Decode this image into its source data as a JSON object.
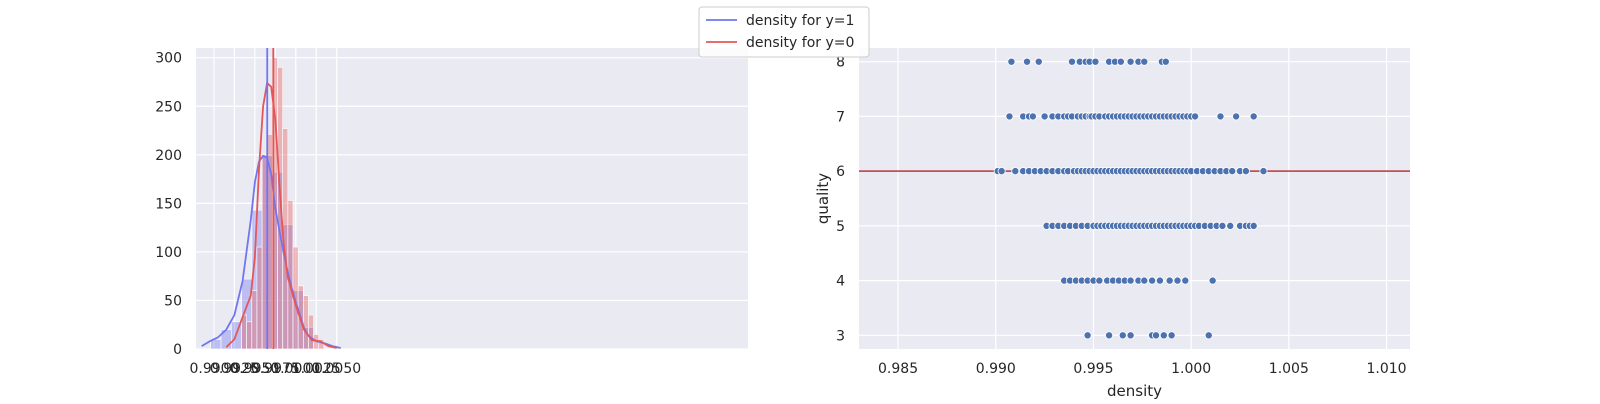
{
  "legend": {
    "items": [
      {
        "label": "density for y=1",
        "color": "#7076f3"
      },
      {
        "label": "density for y=0",
        "color": "#e45756"
      }
    ]
  },
  "chart_data": [
    {
      "type": "bar",
      "subtype": "histogram-with-kde",
      "title": "",
      "xlabel": "",
      "ylabel": "",
      "xlim": [
        0.9878,
        1.0553
      ],
      "ylim": [
        0,
        310
      ],
      "xticks": [
        "0.9900",
        "0.9925",
        "0.9950",
        "0.9975",
        "1.0000",
        "1.0025",
        "1.0050"
      ],
      "yticks": [
        "0",
        "50",
        "100",
        "150",
        "200",
        "250",
        "300"
      ],
      "grid": true,
      "background": "#eaeaf2",
      "series": [
        {
          "name": "density for y=1",
          "color": "#7076f3",
          "bin_edges": [
            0.9896,
            0.99086,
            0.99212,
            0.99338,
            0.99464,
            0.9959,
            0.99716,
            0.99842,
            0.99968,
            1.00094,
            1.0022
          ],
          "counts": [
            10,
            20,
            28,
            72,
            143,
            199,
            182,
            128,
            60,
            22
          ],
          "kde": {
            "x": [
              0.9885,
              0.9895,
              0.9905,
              0.9915,
              0.9925,
              0.9935,
              0.9945,
              0.995,
              0.9955,
              0.996,
              0.9965,
              0.997,
              0.9975,
              0.998,
              0.9985,
              0.999,
              0.9995,
              1.0,
              1.0005,
              1.001,
              1.0015,
              1.0025,
              1.0035,
              1.0045,
              1.0055
            ],
            "y": [
              3,
              8,
              12,
              20,
              35,
              70,
              133,
              172,
              193,
              199,
              197,
              180,
              145,
              122,
              100,
              80,
              63,
              48,
              35,
              22,
              14,
              8,
              6,
              3,
              1
            ]
          },
          "mean": 0.99651
        },
        {
          "name": "density for y=0",
          "color": "#e45756",
          "bin_edges": [
            0.99336,
            0.99399,
            0.99462,
            0.99525,
            0.99588,
            0.99651,
            0.99714,
            0.99777,
            0.9984,
            0.99903,
            0.99966,
            1.00029,
            1.00092,
            1.00155,
            1.00218,
            1.00281,
            1.00344
          ],
          "counts": [
            35,
            28,
            60,
            105,
            200,
            221,
            300,
            290,
            227,
            153,
            105,
            65,
            55,
            35,
            15,
            10
          ],
          "kde": {
            "x": [
              0.9915,
              0.9925,
              0.9935,
              0.9945,
              0.995,
              0.9955,
              0.996,
              0.9965,
              0.997,
              0.9975,
              0.998,
              0.9985,
              0.999,
              0.9995,
              1.0,
              1.001,
              1.002,
              1.003,
              1.004,
              1.005
            ],
            "y": [
              2,
              10,
              33,
              55,
              95,
              185,
              250,
              274,
              270,
              237,
              170,
              110,
              75,
              60,
              45,
              20,
              9,
              8,
              3,
              1
            ]
          },
          "mean": 0.99725
        }
      ]
    },
    {
      "type": "scatter",
      "title": "",
      "xlabel": "density",
      "ylabel": "quality",
      "xlim": [
        0.983,
        1.0112
      ],
      "ylim": [
        2.75,
        8.25
      ],
      "xticks": [
        "0.985",
        "0.990",
        "0.995",
        "1.000",
        "1.005",
        "1.010"
      ],
      "yticks": [
        "3",
        "4",
        "5",
        "6",
        "7",
        "8"
      ],
      "grid": true,
      "background": "#eaeaf2",
      "point_color": "#4c72b0",
      "hline": {
        "y": 6,
        "color": "#c44e52"
      },
      "rows": [
        {
          "quality": 8,
          "x": [
            0.9908,
            0.9916,
            0.9922,
            0.9939,
            0.9943,
            0.9946,
            0.9948,
            0.9951,
            0.9958,
            0.9961,
            0.9964,
            0.9969,
            0.9973,
            0.9976,
            0.9985,
            0.9987
          ]
        },
        {
          "quality": 7,
          "x": [
            0.9907,
            0.9914,
            0.9917,
            0.9919,
            0.9925,
            0.9929,
            0.9932,
            0.9935,
            0.9937,
            0.9939,
            0.9942,
            0.9944,
            0.9946,
            0.9948,
            0.9949,
            0.9951,
            0.9953,
            0.9956,
            0.9958,
            0.996,
            0.9962,
            0.9964,
            0.9966,
            0.9968,
            0.997,
            0.9972,
            0.9974,
            0.9976,
            0.9978,
            0.998,
            0.9982,
            0.9984,
            0.9986,
            0.9988,
            0.999,
            0.9992,
            0.9994,
            0.9996,
            0.9998,
            1.0,
            1.0002,
            1.0015,
            1.0023,
            1.0032
          ]
        },
        {
          "quality": 6,
          "x": [
            0.9901,
            0.9903,
            0.991,
            0.9914,
            0.9917,
            0.992,
            0.9923,
            0.9926,
            0.9929,
            0.9932,
            0.9935,
            0.9937,
            0.994,
            0.9942,
            0.9944,
            0.9946,
            0.9948,
            0.995,
            0.9952,
            0.9954,
            0.9956,
            0.9958,
            0.996,
            0.9962,
            0.9964,
            0.9966,
            0.9968,
            0.997,
            0.9972,
            0.9974,
            0.9976,
            0.9978,
            0.998,
            0.9982,
            0.9984,
            0.9986,
            0.9988,
            0.999,
            0.9992,
            0.9994,
            0.9996,
            0.9998,
            1.0,
            1.0003,
            1.0006,
            1.0009,
            1.0012,
            1.0015,
            1.0018,
            1.0021,
            1.0025,
            1.0028,
            1.0037
          ]
        },
        {
          "quality": 5,
          "x": [
            0.9926,
            0.9929,
            0.9932,
            0.9935,
            0.9938,
            0.9941,
            0.9944,
            0.9947,
            0.995,
            0.9952,
            0.9954,
            0.9956,
            0.9958,
            0.996,
            0.9962,
            0.9964,
            0.9966,
            0.9968,
            0.997,
            0.9972,
            0.9974,
            0.9976,
            0.9978,
            0.998,
            0.9982,
            0.9984,
            0.9986,
            0.9988,
            0.999,
            0.9992,
            0.9994,
            0.9996,
            0.9998,
            1.0,
            1.0002,
            1.0004,
            1.0007,
            1.001,
            1.0013,
            1.0016,
            1.002,
            1.0025,
            1.0028,
            1.003,
            1.0032
          ]
        },
        {
          "quality": 4,
          "x": [
            0.9935,
            0.9938,
            0.9941,
            0.9944,
            0.9947,
            0.995,
            0.9953,
            0.9957,
            0.996,
            0.9963,
            0.9966,
            0.9969,
            0.9973,
            0.9976,
            0.998,
            0.9984,
            0.9989,
            0.9993,
            0.9997,
            1.0011
          ]
        },
        {
          "quality": 3,
          "x": [
            0.9947,
            0.9958,
            0.9965,
            0.9969,
            0.998,
            0.9982,
            0.9986,
            0.999,
            1.0009
          ]
        }
      ]
    }
  ]
}
